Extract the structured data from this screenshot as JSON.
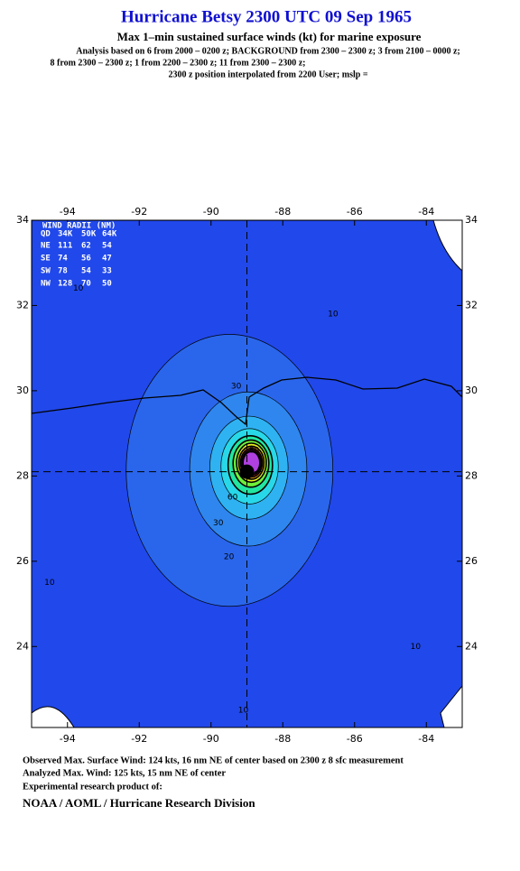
{
  "header": {
    "title": "Hurricane Betsy 2300 UTC 09 Sep 1965",
    "subtitle": "Max 1–min sustained surface winds (kt) for marine exposure",
    "analysis_lines": [
      "Analysis based on  6 from 2000 – 0200 z;  BACKGROUND from 2300 – 2300 z;  3 from 2100 – 0000 z;",
      "8 from 2300 – 2300 z;  1 from 2200 – 2300 z;  11 from 2300 – 2300 z;",
      "2300 z position interpolated from 2200 User; mslp ="
    ]
  },
  "chart_data": {
    "type": "map",
    "xlim": [
      -95,
      -83
    ],
    "ylim": [
      22.1,
      34
    ],
    "xticks": [
      -94,
      -92,
      -90,
      -88,
      -86,
      -84
    ],
    "yticks": [
      24,
      26,
      28,
      30,
      32,
      34
    ],
    "center": {
      "lon": -89.0,
      "lat": 28.1
    },
    "background_color": "#1e32e6",
    "contours": [
      {
        "level": 10,
        "color": "#2148ea"
      },
      {
        "level": 20,
        "color": "#2a66ec"
      },
      {
        "level": 30,
        "color": "#2f86ee"
      },
      {
        "level": 40,
        "color": "#2fb2f2"
      },
      {
        "level": 50,
        "color": "#28d8e8"
      },
      {
        "level": 60,
        "color": "#22e6a0"
      },
      {
        "level": 70,
        "color": "#6ef03a"
      },
      {
        "level": 80,
        "color": "#e8ee20"
      },
      {
        "level": 90,
        "color": "#f8a018"
      },
      {
        "level": 100,
        "color": "#f03028"
      },
      {
        "level": 110,
        "color": "#e828b0"
      },
      {
        "level": 120,
        "color": "#b040e0"
      }
    ],
    "wind_radii": {
      "title": "WIND RADII (NM)",
      "columns": [
        "QD",
        "34K",
        "50K",
        "64K"
      ],
      "rows": [
        [
          "NE",
          "111",
          "62",
          "54"
        ],
        [
          "SE",
          "74",
          "56",
          "47"
        ],
        [
          "SW",
          "78",
          "54",
          "33"
        ],
        [
          "NW",
          "128",
          "70",
          "50"
        ]
      ]
    }
  },
  "footer": {
    "lines": [
      "Observed Max. Surface Wind: 124 kts, 16 nm NE of center based on 2300 z 8 sfc measurement",
      "Analyzed Max. Wind: 125 kts, 15 nm NE of center",
      "Experimental research product of:"
    ],
    "org": "NOAA / AOML / Hurricane Research Division"
  }
}
